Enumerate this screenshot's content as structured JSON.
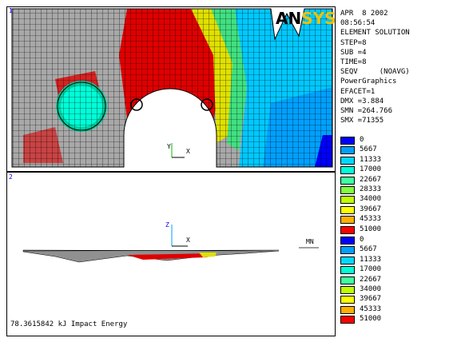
{
  "window": {
    "top_number": "1",
    "bottom_number": "2"
  },
  "logo": {
    "part1": "AN",
    "part2": "SYS"
  },
  "info": {
    "date": "APR  8 2002",
    "time": "08:56:54",
    "mode": "ELEMENT SOLUTION",
    "step": "STEP=8",
    "sub": "SUB =4",
    "time_val": "TIME=8",
    "seqv": "SEQV     (NOAVG)",
    "graphics": "PowerGraphics",
    "efacet": "EFACET=1",
    "dmx": "DMX =3.884",
    "smn": "SMN =264.766",
    "smx": "SMX =71355"
  },
  "legend_top": [
    {
      "label": "0",
      "color": "#0000ff"
    },
    {
      "label": "5667",
      "color": "#00a0ff"
    },
    {
      "label": "11333",
      "color": "#00d8ff"
    },
    {
      "label": "17000",
      "color": "#00ffd8"
    },
    {
      "label": "22667",
      "color": "#40ffa0"
    },
    {
      "label": "28333",
      "color": "#80ff40"
    },
    {
      "label": "34000",
      "color": "#c0ff00"
    },
    {
      "label": "39667",
      "color": "#ffff00"
    },
    {
      "label": "45333",
      "color": "#ffb000"
    },
    {
      "label": "51000",
      "color": "#ff0000"
    }
  ],
  "legend_bottom": [
    {
      "label": "0",
      "color": "#0000ff"
    },
    {
      "label": "5667",
      "color": "#00a0ff"
    },
    {
      "label": "11333",
      "color": "#00d8ff"
    },
    {
      "label": "17000",
      "color": "#00ffd8"
    },
    {
      "label": "22667",
      "color": "#40ffa0"
    },
    {
      "label": "34000",
      "color": "#c0ff00"
    },
    {
      "label": "39667",
      "color": "#ffff00"
    },
    {
      "label": "45333",
      "color": "#ffb000"
    },
    {
      "label": "51000",
      "color": "#ff0000"
    }
  ],
  "axes": {
    "z": "Z",
    "x": "X",
    "y": "Y"
  },
  "mn_label": "MN",
  "footer": "78.3615842 kJ Impact Energy"
}
